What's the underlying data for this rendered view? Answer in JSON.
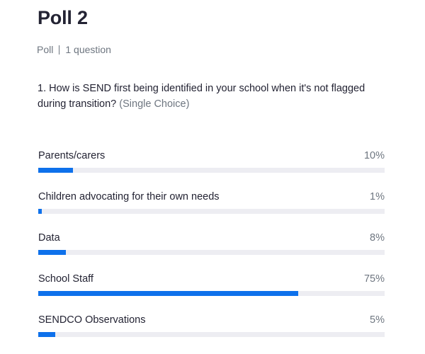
{
  "poll": {
    "title": "Poll 2",
    "kind": "Poll",
    "question_count": "1 question"
  },
  "question": {
    "text": "1. How is SEND first being identified in your school when it's not flagged during transition?",
    "type": "(Single Choice)"
  },
  "options": [
    {
      "label": "Parents/carers",
      "percent": "10%",
      "value": 10
    },
    {
      "label": "Children advocating for their own needs",
      "percent": "1%",
      "value": 1
    },
    {
      "label": "Data",
      "percent": "8%",
      "value": 8
    },
    {
      "label": "School Staff",
      "percent": "75%",
      "value": 75
    },
    {
      "label": "SENDCO Observations",
      "percent": "5%",
      "value": 5
    }
  ],
  "colors": {
    "accent": "#0e71eb",
    "track": "#ededf2",
    "text": "#232333",
    "muted": "#6e7680"
  }
}
